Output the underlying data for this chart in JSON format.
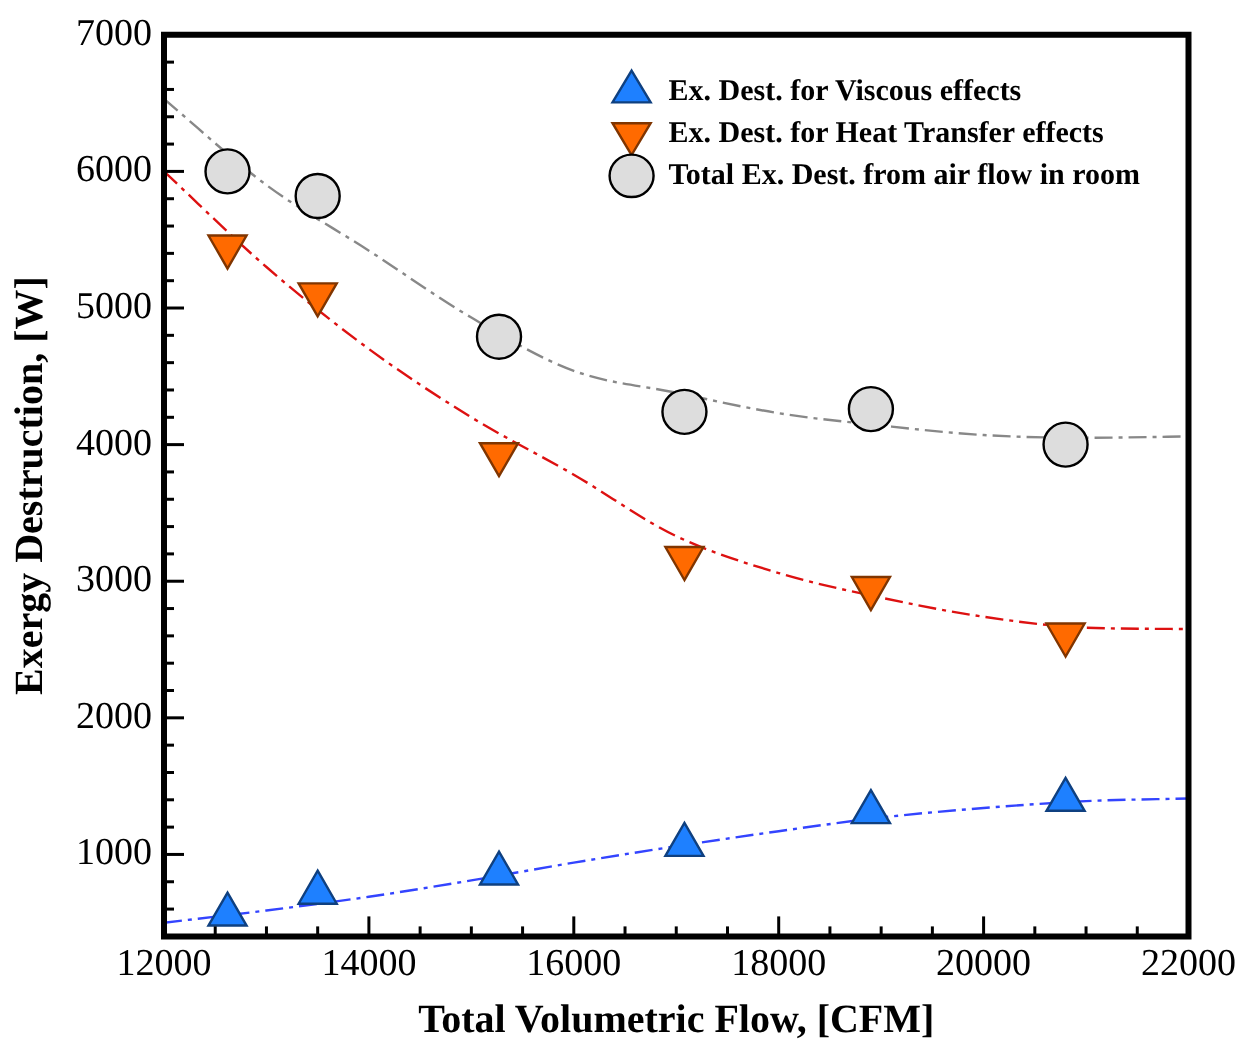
{
  "chart_data": {
    "type": "scatter",
    "xlabel": "Total Volumetric Flow, [CFM]",
    "ylabel": "Exergy Destruction, [W]",
    "xlim": [
      12000,
      22000
    ],
    "xticks": [
      12000,
      14000,
      16000,
      18000,
      20000,
      22000
    ],
    "ylim": [
      400,
      7000
    ],
    "yticks": [
      1000,
      2000,
      3000,
      4000,
      5000,
      6000,
      7000
    ],
    "grid": false,
    "legend": "top right",
    "series": [
      {
        "name": "Ex. Dest. for Viscous effects",
        "marker": "triangle",
        "color": "#1e80ff",
        "x": [
          12620,
          13500,
          15270,
          17080,
          18900,
          20800
        ],
        "values": [
          560,
          720,
          860,
          1070,
          1310,
          1400
        ]
      },
      {
        "name": "Ex. Dest. for Heat Transfer effects",
        "marker": "triangle-down",
        "color": "#ff6a00",
        "x": [
          12620,
          13500,
          15270,
          17080,
          18900,
          20800
        ],
        "values": [
          5450,
          5100,
          3930,
          3170,
          2950,
          2610
        ]
      },
      {
        "name": "Total Ex. Dest. from air flow in room",
        "marker": "circle",
        "color": "#dddddd",
        "x": [
          12620,
          13500,
          15270,
          17080,
          18900,
          20800
        ],
        "values": [
          6000,
          5820,
          4790,
          4240,
          4260,
          4000
        ]
      },
      {
        "type": "line",
        "marker": "none",
        "line_style": "dashed",
        "color": "#3344ff",
        "x": [
          12000,
          13000,
          14000,
          15000,
          16000,
          17000,
          18000,
          19000,
          20000,
          21000,
          22000
        ],
        "values": [
          500,
          590,
          690,
          810,
          940,
          1060,
          1170,
          1270,
          1340,
          1390,
          1410
        ]
      },
      {
        "type": "line",
        "marker": "none",
        "line_style": "dashed",
        "color": "#dd1111",
        "x": [
          12000,
          13000,
          14000,
          15000,
          16000,
          17000,
          18000,
          19000,
          20000,
          21000,
          22000
        ],
        "values": [
          6000,
          5300,
          4700,
          4200,
          3780,
          3330,
          3060,
          2880,
          2740,
          2660,
          2650
        ]
      },
      {
        "type": "line",
        "marker": "none",
        "line_style": "dashed",
        "color": "#888888",
        "x": [
          12000,
          13000,
          14000,
          15000,
          16000,
          17000,
          18000,
          19000,
          20000,
          21000,
          22000
        ],
        "values": [
          6530,
          5900,
          5420,
          4930,
          4540,
          4380,
          4230,
          4140,
          4070,
          4050,
          4060
        ]
      }
    ]
  }
}
